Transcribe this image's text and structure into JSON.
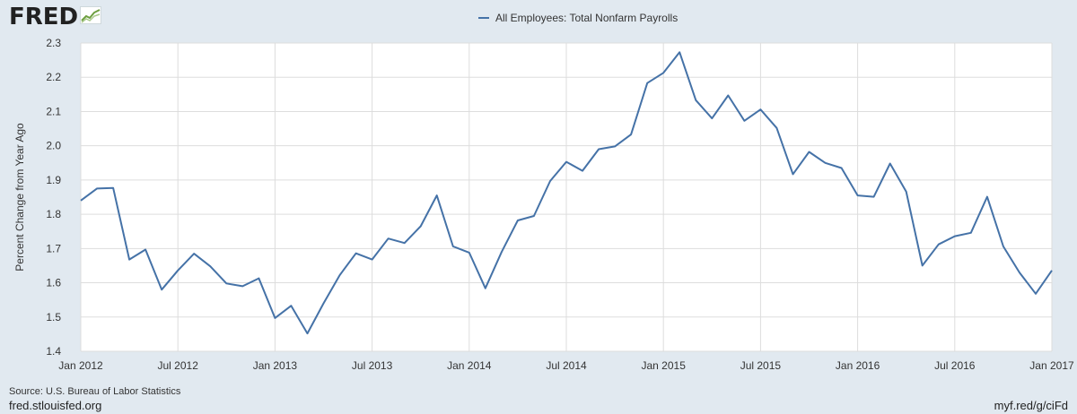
{
  "header": {
    "logo_text": "FRED",
    "logo_icon": "trend-graph-icon"
  },
  "footer": {
    "source": "Source: U.S. Bureau of Labor Statistics",
    "site": "fred.stlouisfed.org",
    "shortlink": "myf.red/g/ciFd"
  },
  "colors": {
    "background": "#e1e9f0",
    "plot_background": "#ffffff",
    "series": "#4572a7",
    "grid": "#dddddd"
  },
  "chart_data": {
    "type": "line",
    "title": "",
    "xlabel": "",
    "ylabel": "Percent Change from Year Ago",
    "ylim": [
      1.4,
      2.3
    ],
    "yticks": [
      "1.4",
      "1.5",
      "1.6",
      "1.7",
      "1.8",
      "1.9",
      "2.0",
      "2.1",
      "2.2",
      "2.3"
    ],
    "x_range": [
      "2012-01",
      "2017-01"
    ],
    "xticks": [
      {
        "date": "2012-01",
        "label": "Jan 2012"
      },
      {
        "date": "2012-07",
        "label": "Jul 2012"
      },
      {
        "date": "2013-01",
        "label": "Jan 2013"
      },
      {
        "date": "2013-07",
        "label": "Jul 2013"
      },
      {
        "date": "2014-01",
        "label": "Jan 2014"
      },
      {
        "date": "2014-07",
        "label": "Jul 2014"
      },
      {
        "date": "2015-01",
        "label": "Jan 2015"
      },
      {
        "date": "2015-07",
        "label": "Jul 2015"
      },
      {
        "date": "2016-01",
        "label": "Jan 2016"
      },
      {
        "date": "2016-07",
        "label": "Jul 2016"
      },
      {
        "date": "2017-01",
        "label": "Jan 2017"
      }
    ],
    "grid": true,
    "legend_position": "top-center",
    "series": [
      {
        "name": "All Employees: Total Nonfarm Payrolls",
        "color": "#4572a7",
        "x": [
          "2012-01",
          "2012-02",
          "2012-03",
          "2012-04",
          "2012-05",
          "2012-06",
          "2012-07",
          "2012-08",
          "2012-09",
          "2012-10",
          "2012-11",
          "2012-12",
          "2013-01",
          "2013-02",
          "2013-03",
          "2013-04",
          "2013-05",
          "2013-06",
          "2013-07",
          "2013-08",
          "2013-09",
          "2013-10",
          "2013-11",
          "2013-12",
          "2014-01",
          "2014-02",
          "2014-03",
          "2014-04",
          "2014-05",
          "2014-06",
          "2014-07",
          "2014-08",
          "2014-09",
          "2014-10",
          "2014-11",
          "2014-12",
          "2015-01",
          "2015-02",
          "2015-03",
          "2015-04",
          "2015-05",
          "2015-06",
          "2015-07",
          "2015-08",
          "2015-09",
          "2015-10",
          "2015-11",
          "2015-12",
          "2016-01",
          "2016-02",
          "2016-03",
          "2016-04",
          "2016-05",
          "2016-06",
          "2016-07",
          "2016-08",
          "2016-09",
          "2016-10",
          "2016-11",
          "2016-12",
          "2017-01"
        ],
        "values": [
          1.84,
          1.875,
          1.877,
          1.668,
          1.697,
          1.58,
          1.636,
          1.685,
          1.648,
          1.598,
          1.59,
          1.613,
          1.497,
          1.533,
          1.452,
          1.54,
          1.622,
          1.686,
          1.668,
          1.729,
          1.716,
          1.765,
          1.855,
          1.706,
          1.688,
          1.584,
          1.69,
          1.782,
          1.795,
          1.897,
          1.953,
          1.927,
          1.99,
          1.998,
          2.033,
          2.183,
          2.213,
          2.273,
          2.133,
          2.08,
          2.147,
          2.073,
          2.106,
          2.052,
          1.917,
          1.982,
          1.95,
          1.935,
          1.855,
          1.851,
          1.948,
          1.866,
          1.65,
          1.712,
          1.736,
          1.746,
          1.851,
          1.706,
          1.63,
          1.568,
          1.636
        ]
      }
    ]
  }
}
